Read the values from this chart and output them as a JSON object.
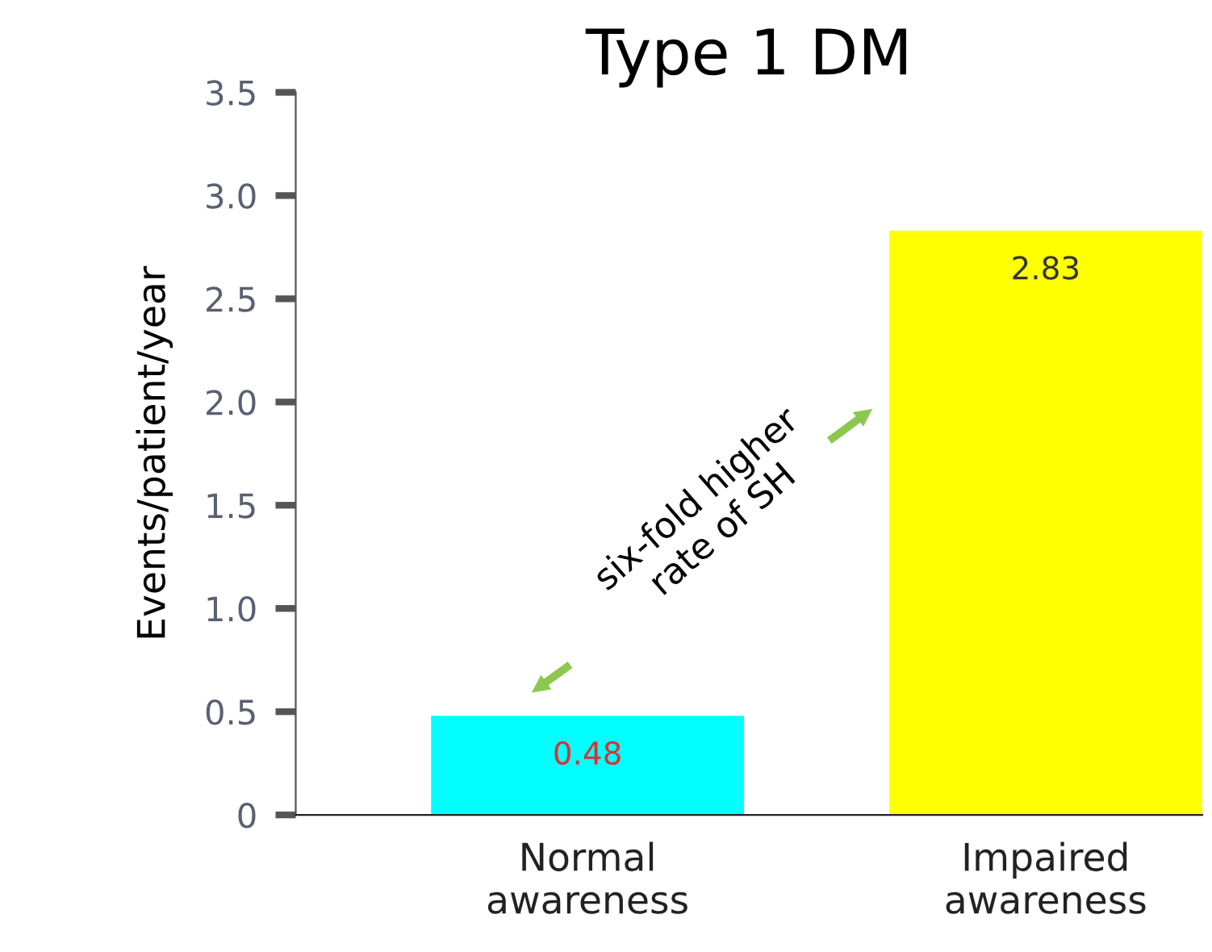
{
  "chart_data": {
    "type": "bar",
    "title": "Type 1 DM",
    "ylabel": "Events/patient/year",
    "categories": [
      "Normal\nawareness",
      "Impaired\nawareness"
    ],
    "values": [
      0.48,
      2.83
    ],
    "colors": [
      "#00ffff",
      "#ffff00"
    ],
    "data_labels": true,
    "ylim": [
      0,
      3.5
    ],
    "yticks": [
      0,
      0.5,
      {
        "value": 1.0,
        "label": "1.0"
      },
      1.5,
      {
        "value": 2.0,
        "label": "2.0"
      },
      2.5,
      {
        "value": 3.0,
        "label": "3.0"
      },
      3.5
    ],
    "grid": false,
    "legend": false,
    "annotations": [
      "six-fold higher\nrate of SH"
    ]
  }
}
